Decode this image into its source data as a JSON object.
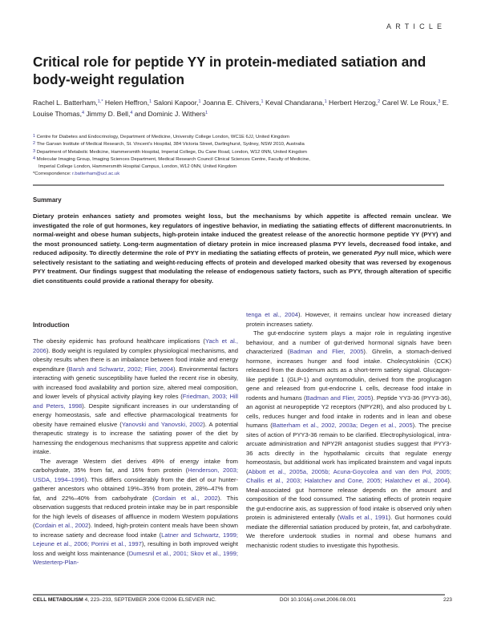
{
  "header": {
    "section_label": "ARTICLE"
  },
  "title": "Critical role for peptide YY in protein-mediated satiation and body-weight regulation",
  "authors": [
    {
      "name": "Rachel L. Batterham,",
      "sup": "1,*"
    },
    {
      "name": " Helen Heffron,",
      "sup": "1"
    },
    {
      "name": " Saloni Kapoor,",
      "sup": "1"
    },
    {
      "name": " Joanna E. Chivers,",
      "sup": "1"
    },
    {
      "name": " Keval Chandarana,",
      "sup": "1"
    },
    {
      "name": " Herbert Herzog,",
      "sup": "2"
    },
    {
      "name": " Carel W. Le Roux,",
      "sup": "3"
    },
    {
      "name": " E. Louise Thomas,",
      "sup": "4"
    },
    {
      "name": " Jimmy D. Bell,",
      "sup": "4"
    },
    {
      "name": " and Dominic J. Withers",
      "sup": "1"
    }
  ],
  "affiliations": [
    {
      "num": "1",
      "text": " Centre for Diabetes and Endocrinology, Department of Medicine, University College London, WC1E 6JJ, United Kingdom"
    },
    {
      "num": "2",
      "text": " The Garvan Institute of Medical Research, St. Vincent’s Hospital, 384 Victoria Street, Darlinghurst, Sydney, NSW 2010, Australia"
    },
    {
      "num": "3",
      "text": " Department of Metabolic Medicine, Hammersmith Hospital, Imperial College, Du Cane Road, London, W12 0NN, United Kingdom"
    },
    {
      "num": "4",
      "text": " Molecular Imaging Group, Imaging Sciences Department, Medical Research Council Clinical Sciences Centre, Faculty of Medicine,"
    },
    {
      "num": "",
      "text": "Imperial College London, Hammersmith Hospital Campus, London, W12 0NN, United Kingdom"
    }
  ],
  "correspondence": {
    "label": "*Correspondence: ",
    "email": "r.batterham@ucl.ac.uk"
  },
  "summary": {
    "heading": "Summary",
    "segments": [
      {
        "t": "Dietary protein enhances satiety and promotes weight loss, but the mechanisms by which appetite is affected remain unclear. We investigated the role of gut hormones, key regulators of ingestive behavior, in mediating the satiating effects of different macronutrients. In normal-weight and obese human subjects, high-protein intake induced the greatest release of the anorectic hormone peptide YY (PYY) and the most pronounced satiety. Long-term augmentation of dietary protein in mice increased plasma PYY levels, decreased food intake, and reduced adiposity. To directly determine the role of PYY in mediating the satiating effects of protein, we generated "
      },
      {
        "t": "Pyy",
        "i": true
      },
      {
        "t": " null mice, which were selectively resistant to the satiating and weight-reducing effects of protein and developed marked obesity that was reversed by exogenous PYY treatment. Our findings suggest that modulating the release of endogenous satiety factors, such as PYY, through alteration of specific diet constituents could provide a rational therapy for obesity."
      }
    ]
  },
  "introduction": {
    "heading": "Introduction",
    "left_column": [
      {
        "indent": false,
        "segments": [
          {
            "t": "The obesity epidemic has profound healthcare implications ("
          },
          {
            "t": "Yach et al., 2006",
            "link": true
          },
          {
            "t": "). Body weight is regulated by complex physiological mechanisms, and obesity results when there is an imbalance between food intake and energy expenditure ("
          },
          {
            "t": "Barsh and Schwartz, 2002; Flier, 2004",
            "link": true
          },
          {
            "t": "). Environmental factors interacting with genetic susceptibility have fueled the recent rise in obesity, with increased food availability and portion size, altered meal composition, and lower levels of physical activity playing key roles ("
          },
          {
            "t": "Friedman, 2003; Hill and Peters, 1998",
            "link": true
          },
          {
            "t": "). Despite significant increases in our understanding of energy homeostasis, safe and effective pharmacological treatments for obesity have remained elusive ("
          },
          {
            "t": "Yanovski and Yanovski, 2002",
            "link": true
          },
          {
            "t": "). A potential therapeutic strategy is to increase the satiating power of the diet by harnessing the endogenous mechanisms that suppress appetite and caloric intake."
          }
        ]
      },
      {
        "indent": true,
        "segments": [
          {
            "t": "The average Western diet derives 49% of energy intake from carbohydrate, 35% from fat, and 16% from protein ("
          },
          {
            "t": "Henderson, 2003; USDA, 1994–1996",
            "link": true
          },
          {
            "t": "). This differs considerably from the diet of our hunter-gatherer ancestors who obtained 19%–35% from protein, 28%–47% from fat, and 22%–40% from carbohydrate ("
          },
          {
            "t": "Cordain et al., 2002",
            "link": true
          },
          {
            "t": "). This observation suggests that reduced protein intake may be in part responsible for the high levels of diseases of affluence in modern Western populations ("
          },
          {
            "t": "Cordain et al., 2002",
            "link": true
          },
          {
            "t": "). Indeed, high-protein content meals have been shown to increase satiety and decrease food intake ("
          },
          {
            "t": "Latner and Schwartz, 1999; Lejeune et al., 2006; Porrini et al., 1997",
            "link": true
          },
          {
            "t": "), resulting in both improved weight loss and weight loss maintenance ("
          },
          {
            "t": "Dumesnil et al., 2001; Skov et al., 1999; Westerterp-Plan-",
            "link": true
          }
        ]
      }
    ],
    "right_column": [
      {
        "indent": false,
        "segments": [
          {
            "t": "tenga et al., 2004",
            "link": true
          },
          {
            "t": "). However, it remains unclear how increased dietary protein increases satiety."
          }
        ]
      },
      {
        "indent": true,
        "segments": [
          {
            "t": "The gut-endocrine system plays a major role in regulating ingestive behaviour, and a number of gut-derived hormonal signals have been characterized ("
          },
          {
            "t": "Badman and Flier, 2005",
            "link": true
          },
          {
            "t": "). Ghrelin, a stomach-derived hormone, increases hunger and food intake. Cholecystokinin (CCK) released from the duodenum acts as a short-term satiety signal. Glucagon-like peptide 1 (GLP-1) and oxyntomodulin, derived from the proglucagon gene and released from gut-endocrine L cells, decrease food intake in rodents and humans ("
          },
          {
            "t": "Badman and Flier, 2005",
            "link": true
          },
          {
            "t": "). Peptide YY3-36 (PYY3-36), an agonist at neuropeptide Y2 receptors (NPY2R), and also produced by L cells, reduces hunger and food intake in rodents and in lean and obese humans ("
          },
          {
            "t": "Batterham et al., 2002, 2003a; Degen et al., 2005",
            "link": true
          },
          {
            "t": "). The precise sites of action of PYY3-36 remain to be clarified. Electrophysiological, intra-arcuate administration and NPY2R antagonist studies suggest that PYY3-36 acts directly in the hypothalamic circuits that regulate energy homeostasis, but additional work has implicated brainstem and vagal inputs ("
          },
          {
            "t": "Abbott et al., 2005a, 2005b; Acuna-Goycolea and van den Pol, 2005; Challis et al., 2003; Halatchev and Cone, 2005; Halatchev et al., 2004",
            "link": true
          },
          {
            "t": "). Meal-associated gut hormone release depends on the amount and composition of the food consumed. The satiating effects of protein require the gut-endocrine axis, as suppression of food intake is observed only when protein is administered enterally ("
          },
          {
            "t": "Walls et al., 1991",
            "link": true
          },
          {
            "t": "). Gut hormones could mediate the differential satiation produced by protein, fat, and carbohydrate. We therefore undertook studies in normal and obese humans and mechanistic rodent studies to investigate this hypothesis."
          }
        ]
      }
    ]
  },
  "footer": {
    "journal": "CELL METABOLISM",
    "citation": " 4, 223–233, SEPTEMBER 2006 ©2006 ELSEVIER INC.",
    "doi": "DOI 10.1016/j.cmet.2006.08.001",
    "page": "223"
  },
  "colors": {
    "link": "#3b3b9a",
    "text": "#231f20",
    "rule": "#888888"
  }
}
